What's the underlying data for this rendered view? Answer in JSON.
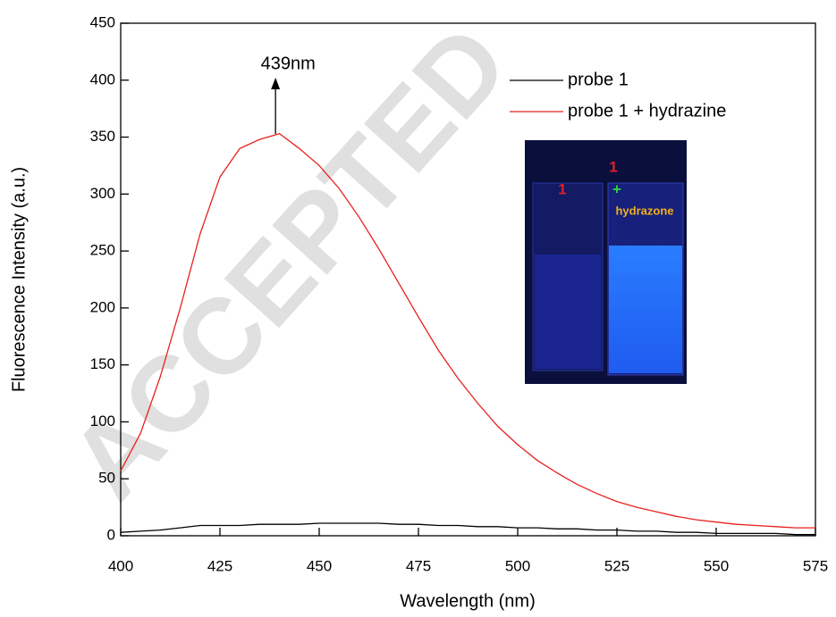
{
  "chart_data": {
    "type": "line",
    "x_label": "Wavelength (nm)",
    "y_label": "Fluorescence Intensity (a.u.)",
    "x": [
      400,
      405,
      410,
      415,
      420,
      425,
      430,
      435,
      440,
      445,
      450,
      455,
      460,
      465,
      470,
      475,
      480,
      485,
      490,
      495,
      500,
      505,
      510,
      515,
      520,
      525,
      530,
      535,
      540,
      545,
      550,
      555,
      560,
      565,
      570,
      575
    ],
    "series": [
      {
        "name": "probe 1",
        "color": "#000000",
        "values": [
          3,
          4,
          5,
          7,
          9,
          9,
          9,
          10,
          10,
          10,
          11,
          11,
          11,
          11,
          10,
          10,
          9,
          9,
          8,
          8,
          7,
          7,
          6,
          6,
          5,
          5,
          4,
          4,
          3,
          3,
          2,
          2,
          2,
          2,
          1,
          1
        ]
      },
      {
        "name": "probe 1 + hydrazine",
        "color": "#e8201e",
        "values": [
          57,
          90,
          140,
          200,
          265,
          315,
          340,
          348,
          353,
          340,
          325,
          305,
          280,
          252,
          222,
          192,
          163,
          138,
          116,
          96,
          80,
          66,
          55,
          45,
          37,
          30,
          25,
          21,
          17,
          14,
          12,
          10,
          9,
          8,
          7,
          7
        ]
      }
    ],
    "xlim": [
      400,
      575
    ],
    "xticks": [
      400,
      425,
      450,
      475,
      500,
      525,
      550,
      575
    ],
    "ylim": [
      0,
      450
    ],
    "yticks": [
      0,
      50,
      100,
      150,
      200,
      250,
      300,
      350,
      400,
      450
    ],
    "legend": "upper right",
    "annotation": {
      "text": "439nm",
      "x": 439
    },
    "inset": {
      "labels": [
        "1",
        "1",
        "+",
        "hydrazone"
      ]
    },
    "watermark": "ACCEPTED"
  }
}
